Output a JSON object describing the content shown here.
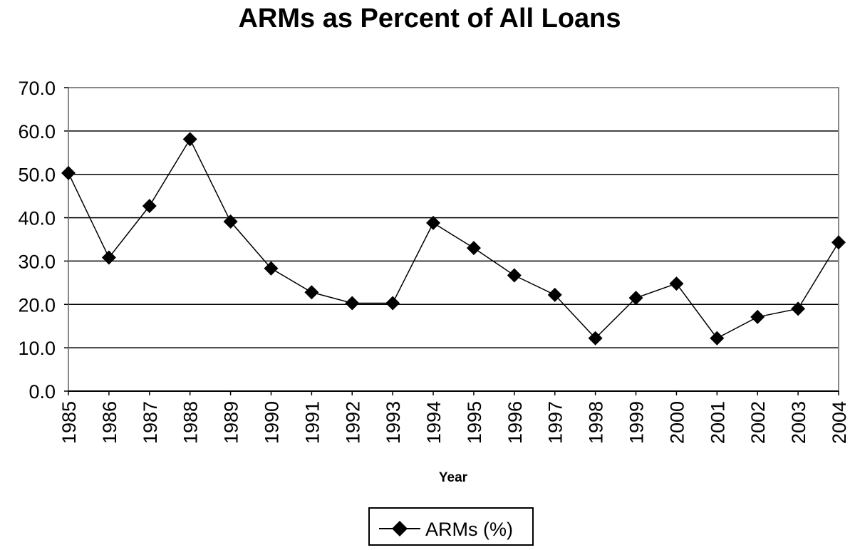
{
  "chart_data": {
    "type": "line",
    "title": "ARMs as Percent of All Loans",
    "xlabel": "Year",
    "ylabel": "",
    "categories": [
      "1985",
      "1986",
      "1987",
      "1988",
      "1989",
      "1990",
      "1991",
      "1992",
      "1993",
      "1994",
      "1995",
      "1996",
      "1997",
      "1998",
      "1999",
      "2000",
      "2001",
      "2002",
      "2003",
      "2004"
    ],
    "series": [
      {
        "name": "ARMs (%)",
        "values": [
          50.3,
          30.8,
          42.7,
          58.1,
          39.1,
          28.3,
          22.8,
          20.3,
          20.3,
          38.8,
          33.0,
          26.7,
          22.2,
          12.2,
          21.5,
          24.8,
          12.2,
          17.1,
          19.0,
          34.3
        ]
      }
    ],
    "ylim": [
      0,
      70
    ],
    "yticks": [
      "0.0",
      "10.0",
      "20.0",
      "30.0",
      "40.0",
      "50.0",
      "60.0",
      "70.0"
    ],
    "grid": "horizontal",
    "legend": "bottom-center",
    "colors": {
      "line": "#000000",
      "marker": "#000000",
      "grid": "#000000",
      "background": "#ffffff"
    },
    "marker": "diamond"
  }
}
